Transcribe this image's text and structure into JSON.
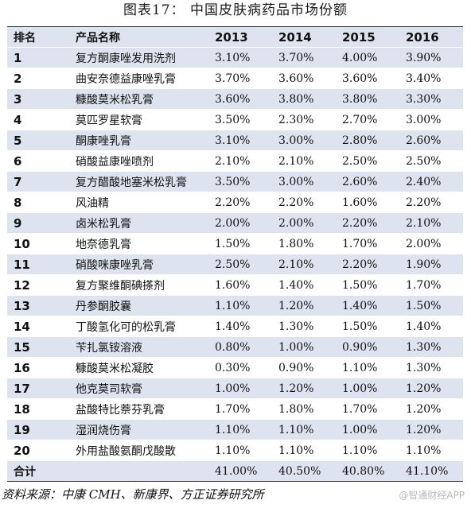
{
  "title": "图表17：  中国皮肤病药品市场份额",
  "table": {
    "headers": [
      "排名",
      "产品名称",
      "2013",
      "2014",
      "2015",
      "2016"
    ],
    "rows": [
      [
        "1",
        "复方酮康唑发用洗剂",
        "3.10%",
        "3.70%",
        "4.00%",
        "3.90%"
      ],
      [
        "2",
        "曲安奈德益康唑乳膏",
        "3.70%",
        "3.60%",
        "3.60%",
        "3.40%"
      ],
      [
        "3",
        "糠酸莫米松乳膏",
        "3.60%",
        "3.80%",
        "3.80%",
        "3.30%"
      ],
      [
        "4",
        "莫匹罗星软膏",
        "3.50%",
        "2.30%",
        "2.70%",
        "3.00%"
      ],
      [
        "5",
        "酮康唑乳膏",
        "3.10%",
        "3.00%",
        "2.80%",
        "2.60%"
      ],
      [
        "6",
        "硝酸益康唑喷剂",
        "2.10%",
        "2.10%",
        "2.50%",
        "2.50%"
      ],
      [
        "7",
        "复方醋酸地塞米松乳膏",
        "3.50%",
        "3.00%",
        "2.60%",
        "2.40%"
      ],
      [
        "8",
        "风油精",
        "2.20%",
        "2.20%",
        "1.60%",
        "2.20%"
      ],
      [
        "9",
        "卤米松乳膏",
        "2.00%",
        "2.00%",
        "2.20%",
        "2.10%"
      ],
      [
        "10",
        "地奈德乳膏",
        "1.50%",
        "1.80%",
        "1.70%",
        "2.00%"
      ],
      [
        "11",
        "硝酸咪康唑乳膏",
        "2.50%",
        "2.10%",
        "2.20%",
        "1.90%"
      ],
      [
        "12",
        "复方聚维酮碘搽剂",
        "1.60%",
        "1.40%",
        "1.50%",
        "1.70%"
      ],
      [
        "13",
        "丹参酮胶囊",
        "1.10%",
        "1.20%",
        "1.40%",
        "1.50%"
      ],
      [
        "14",
        "丁酸氢化可的松乳膏",
        "1.40%",
        "1.30%",
        "1.50%",
        "1.40%"
      ],
      [
        "15",
        "苄扎氯铵溶液",
        "0.80%",
        "1.00%",
        "0.90%",
        "1.30%"
      ],
      [
        "16",
        "糠酸莫米松凝胶",
        "0.30%",
        "0.90%",
        "1.10%",
        "1.30%"
      ],
      [
        "17",
        "他克莫司软膏",
        "1.00%",
        "1.20%",
        "1.00%",
        "1.20%"
      ],
      [
        "18",
        "盐酸特比萘芬乳膏",
        "1.70%",
        "1.80%",
        "1.70%",
        "1.20%"
      ],
      [
        "19",
        "湿润烧伤膏",
        "1.10%",
        "1.10%",
        "1.00%",
        "1.20%"
      ],
      [
        "20",
        "外用盐酸氨酮戊酸散",
        "1.10%",
        "1.10%",
        "1.10%",
        "1.10%"
      ]
    ],
    "total": [
      "合计",
      "",
      "41.00%",
      "40.50%",
      "40.80%",
      "41.10%"
    ]
  },
  "source": "资料来源：中康 CMH、新康界、方正证券研究所",
  "watermark": "@智通财经APP"
}
